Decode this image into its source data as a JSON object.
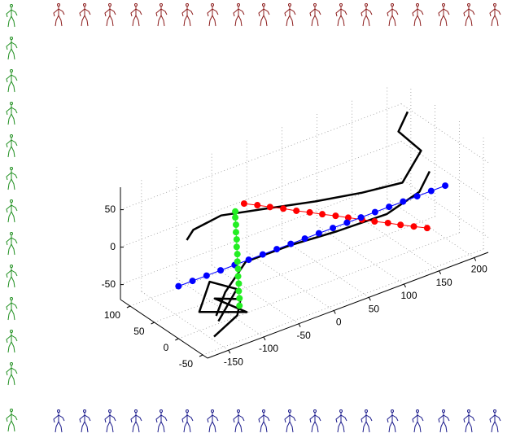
{
  "chart_data": {
    "type": "line3d",
    "xlim": [
      -180,
      220
    ],
    "ylim": [
      -60,
      120
    ],
    "zlim": [
      -70,
      80
    ],
    "xticks": [
      -150,
      -100,
      -50,
      0,
      50,
      100,
      150,
      200
    ],
    "yticks": [
      -50,
      0,
      50,
      100
    ],
    "zticks": [
      -50,
      0,
      50
    ],
    "grid": true,
    "series": [
      {
        "color": "#000000",
        "marker": false,
        "x": [
          -120,
          -90,
          -40,
          20,
          80,
          130,
          170,
          200,
          185,
          205
        ],
        "y": [
          70,
          100,
          115,
          110,
          95,
          70,
          45,
          50,
          75,
          85
        ],
        "z": [
          10,
          0,
          -5,
          -15,
          -20,
          -15,
          -5,
          25,
          45,
          60
        ]
      },
      {
        "color": "#000000",
        "marker": false,
        "x": [
          -140,
          -110,
          -60,
          0,
          60,
          120,
          170,
          195
        ],
        "y": [
          -20,
          5,
          35,
          30,
          20,
          5,
          10,
          25
        ],
        "z": [
          -45,
          -35,
          -25,
          -22,
          -20,
          -12,
          -2,
          10
        ]
      },
      {
        "color": "#000000",
        "marker": false,
        "x": [
          -150,
          -110,
          -95,
          -125,
          -100,
          -140,
          -115,
          -90,
          -130
        ],
        "y": [
          -30,
          -20,
          -5,
          5,
          -25,
          15,
          30,
          10,
          -10
        ],
        "z": [
          -65,
          -55,
          -45,
          -38,
          -52,
          -55,
          -30,
          -40,
          -60
        ]
      },
      {
        "color": "#ff0000",
        "marker": true,
        "x": [
          -8,
          2,
          11,
          21,
          30,
          40,
          49,
          59,
          68,
          78,
          87,
          97,
          106,
          116,
          126
        ],
        "y": [
          114,
          101,
          88,
          75,
          61,
          48,
          35,
          22,
          9,
          -5,
          -18,
          -31,
          -44,
          -57,
          -70
        ],
        "z": [
          0,
          0,
          0,
          0,
          0,
          0,
          0,
          0,
          0,
          0,
          0,
          0,
          0,
          0,
          0
        ]
      },
      {
        "color": "#0000ff",
        "marker": true,
        "x": [
          -180,
          -160,
          -140,
          -120,
          -100,
          -80,
          -60,
          -40,
          -20,
          0,
          20,
          40,
          60,
          80,
          100,
          120,
          140,
          160,
          180,
          200
        ],
        "y": [
          0,
          0,
          0,
          0,
          0,
          0,
          0,
          0,
          0,
          0,
          0,
          0,
          0,
          0,
          0,
          0,
          0,
          0,
          0,
          0
        ],
        "z": [
          0,
          0,
          0,
          0,
          0,
          0,
          0,
          0,
          0,
          0,
          0,
          0,
          0,
          0,
          0,
          0,
          0,
          0,
          0,
          0
        ]
      },
      {
        "color": "#22ee22",
        "marker": true,
        "x": [
          -100,
          -100,
          -101,
          -101,
          -102,
          -102,
          -103,
          -103,
          -104,
          -104,
          -105,
          -105,
          -106,
          -106
        ],
        "y": [
          -10,
          -10,
          -10,
          -10,
          -10,
          -10,
          -10,
          -10,
          -10,
          -10,
          -10,
          -10,
          -10,
          -10
        ],
        "z": [
          -50,
          -40,
          -30,
          -20,
          -10,
          0,
          10,
          20,
          30,
          40,
          50,
          60,
          70,
          78
        ]
      }
    ]
  }
}
